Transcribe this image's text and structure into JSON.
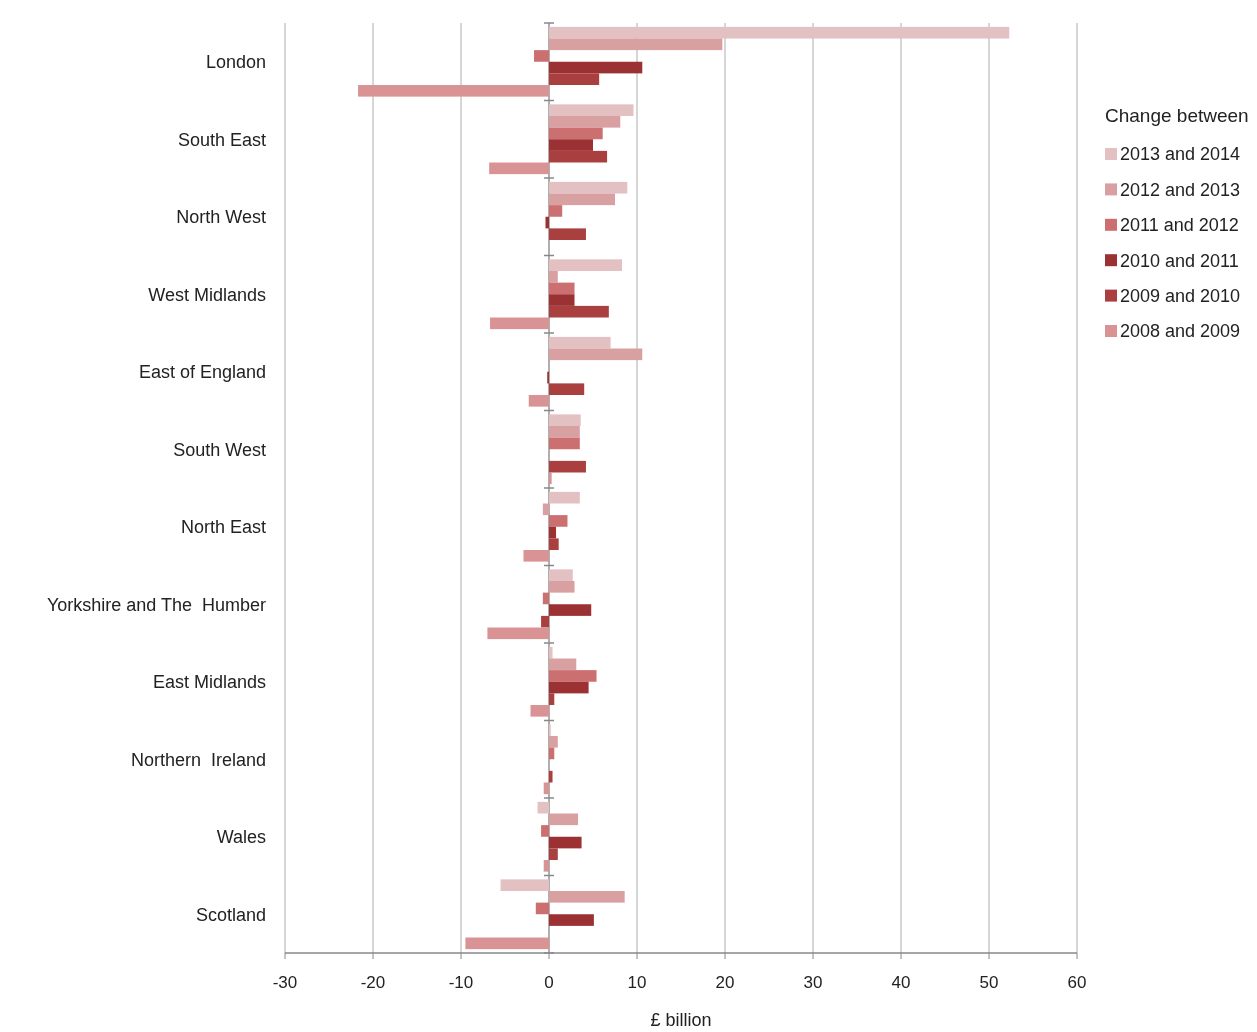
{
  "chart_data": {
    "type": "bar",
    "orientation": "horizontal",
    "xlabel": "£ billion",
    "legend_title": "Change between",
    "legend": "right",
    "grid": "x",
    "categories": [
      "London",
      "South East",
      "North West",
      "West Midlands",
      "East of England",
      "South West",
      "North East",
      "Yorkshire and The  Humber",
      "East Midlands",
      "Northern  Ireland",
      "Wales",
      "Scotland"
    ],
    "xlim": [
      -30,
      60
    ],
    "xticks": [
      -30,
      -20,
      -10,
      0,
      10,
      20,
      30,
      40,
      50,
      60
    ],
    "series": [
      {
        "name": "2013 and 2014",
        "color": "#e3c0c2",
        "values": [
          52.3,
          9.6,
          8.9,
          8.3,
          7.0,
          3.6,
          3.5,
          2.7,
          0.4,
          0.2,
          -1.3,
          -5.5
        ]
      },
      {
        "name": "2012 and 2013",
        "color": "#d9a0a2",
        "values": [
          19.7,
          8.1,
          7.5,
          1.0,
          10.6,
          3.5,
          -0.7,
          2.9,
          3.1,
          1.0,
          3.3,
          8.6
        ]
      },
      {
        "name": "2011 and 2012",
        "color": "#cc6f70",
        "values": [
          -1.7,
          6.1,
          1.5,
          2.9,
          0,
          3.5,
          2.1,
          -0.7,
          5.4,
          0.6,
          -0.9,
          -1.5
        ]
      },
      {
        "name": "2010 and 2011",
        "color": "#9b3133",
        "values": [
          10.6,
          5.0,
          -0.4,
          2.9,
          -0.2,
          0,
          0.8,
          4.8,
          4.5,
          0,
          3.7,
          5.1
        ]
      },
      {
        "name": "2009 and 2010",
        "color": "#a9403f",
        "values": [
          5.7,
          6.6,
          4.2,
          6.8,
          4.0,
          4.2,
          1.1,
          -0.9,
          0.6,
          0.4,
          1.0,
          0
        ]
      },
      {
        "name": "2008 and 2009",
        "color": "#da9395",
        "values": [
          -21.7,
          -6.8,
          0,
          -6.7,
          -2.3,
          0.3,
          -2.9,
          -7.0,
          -2.1,
          -0.6,
          -0.6,
          -9.5
        ]
      }
    ]
  }
}
